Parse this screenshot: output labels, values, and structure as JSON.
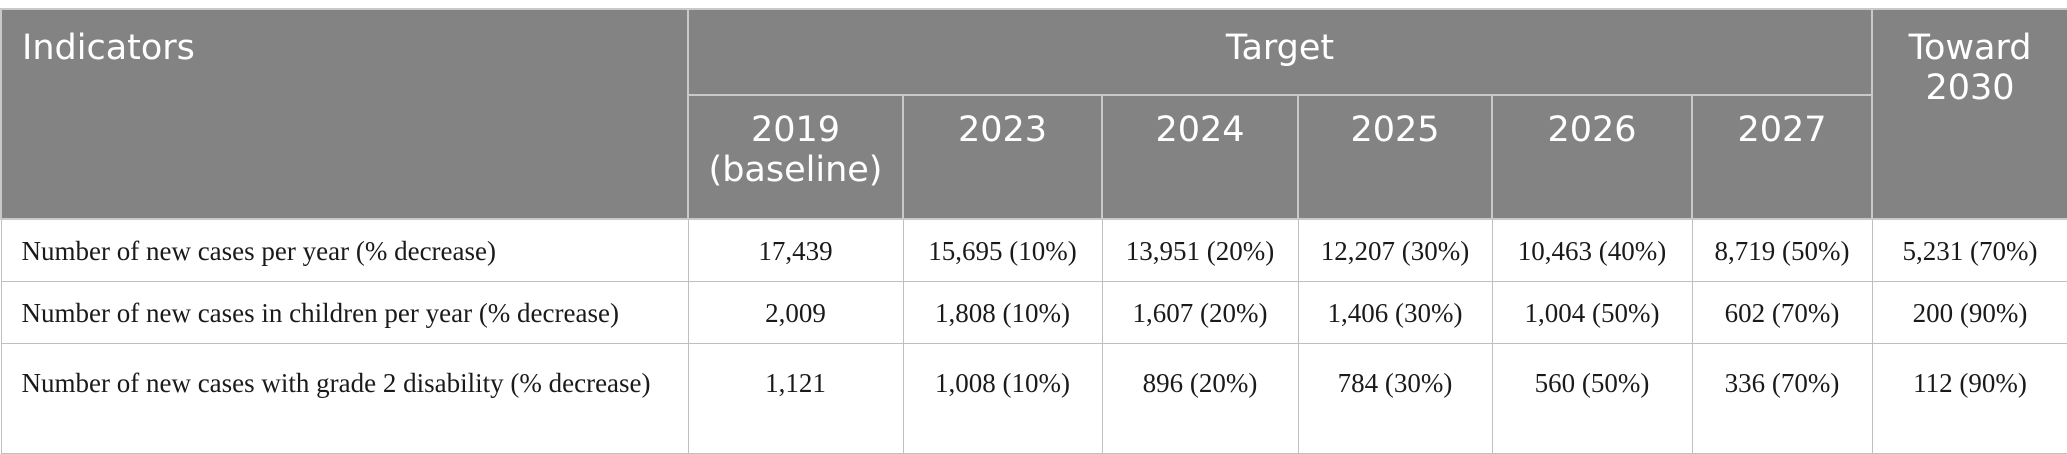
{
  "header": {
    "indicators": "Indicators",
    "target": "Target",
    "toward": "Toward 2030",
    "years": [
      "2019 (baseline)",
      "2023",
      "2024",
      "2025",
      "2026",
      "2027"
    ]
  },
  "rows": [
    {
      "label": "Number of new cases per year (% decrease)",
      "cells": [
        "17,439",
        "15,695 (10%)",
        "13,951 (20%)",
        "12,207 (30%)",
        "10,463 (40%)",
        "8,719 (50%)",
        "5,231 (70%)"
      ]
    },
    {
      "label": "Number of new cases in children per year (% decrease)",
      "cells": [
        "2,009",
        "1,808 (10%)",
        "1,607 (20%)",
        "1,406 (30%)",
        "1,004 (50%)",
        "602 (70%)",
        "200 (90%)"
      ]
    },
    {
      "label": "Number of new cases with grade 2 disability (% decrease)",
      "cells": [
        "1,121",
        "1,008 (10%)",
        "896 (20%)",
        "784 (30%)",
        "560 (50%)",
        "336 (70%)",
        "112 (90%)"
      ]
    }
  ]
}
